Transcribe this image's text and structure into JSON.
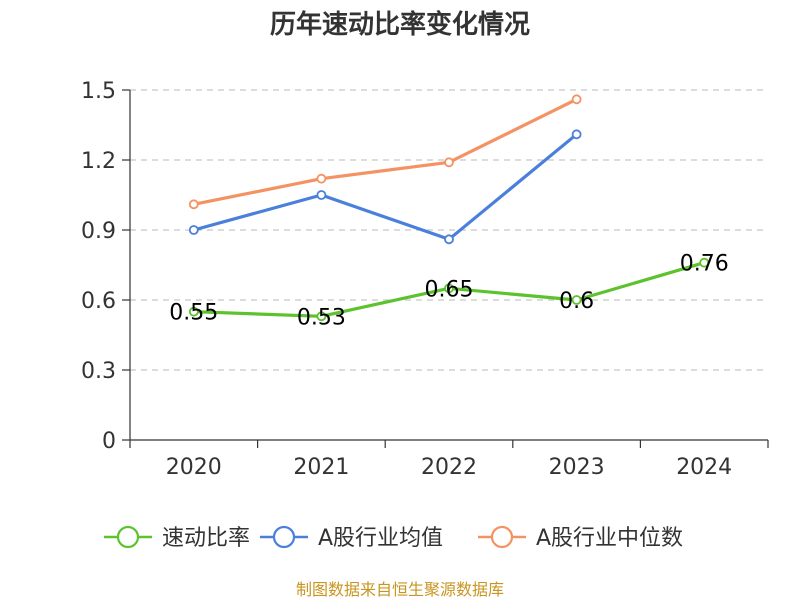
{
  "chart_data": {
    "type": "line",
    "title": "历年速动比率变化情况",
    "categories": [
      "2020",
      "2021",
      "2022",
      "2023",
      "2024"
    ],
    "ylim": [
      0,
      1.5
    ],
    "yticks": [
      "0",
      "0.3",
      "0.6",
      "0.9",
      "1.2",
      "1.5"
    ],
    "grid": true,
    "legend_position": "bottom",
    "series": [
      {
        "name": "速动比率",
        "color": "#5cc22e",
        "values": [
          0.55,
          0.53,
          0.65,
          0.6,
          0.76
        ],
        "labels": [
          "0.55",
          "0.53",
          "0.65",
          "0.6",
          "0.76"
        ],
        "show_labels": true
      },
      {
        "name": "A股行业均值",
        "color": "#4a7fdc",
        "values": [
          0.9,
          1.05,
          0.86,
          1.31,
          null
        ],
        "show_labels": false
      },
      {
        "name": "A股行业中位数",
        "color": "#f59263",
        "values": [
          1.01,
          1.12,
          1.19,
          1.46,
          null
        ],
        "show_labels": false
      }
    ]
  },
  "footer": {
    "source": "制图数据来自恒生聚源数据库"
  }
}
